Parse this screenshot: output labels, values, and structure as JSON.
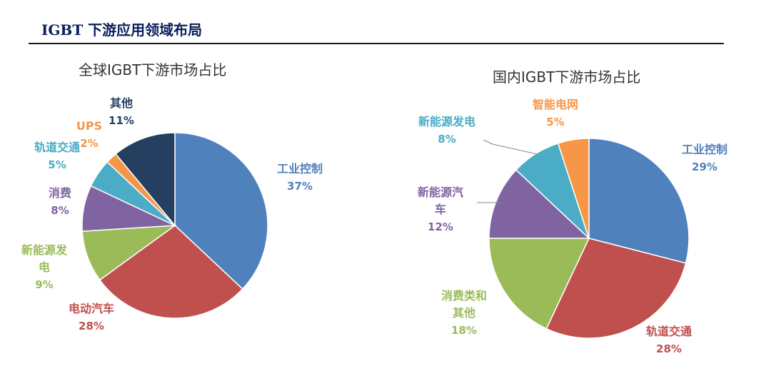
{
  "header": {
    "title": "IGBT 下游应用领域布局"
  },
  "chart_data": [
    {
      "type": "pie",
      "title": "全球IGBT下游市场占比",
      "slices": [
        {
          "label": "工业控制",
          "value": 37,
          "pct_label": "37%",
          "color": "#4f81bd"
        },
        {
          "label": "电动汽车",
          "value": 28,
          "pct_label": "28%",
          "color": "#c0504d"
        },
        {
          "label": "新能源发电",
          "value": 9,
          "pct_label": "9%",
          "color": "#9bbb59"
        },
        {
          "label": "消费",
          "value": 8,
          "pct_label": "8%",
          "color": "#8064a2"
        },
        {
          "label": "轨道交通",
          "value": 5,
          "pct_label": "5%",
          "color": "#4bacc6"
        },
        {
          "label": "UPS",
          "value": 2,
          "pct_label": "2%",
          "color": "#f79646"
        },
        {
          "label": "其他",
          "value": 11,
          "pct_label": "11%",
          "color": "#243f60"
        }
      ]
    },
    {
      "type": "pie",
      "title": "国内IGBT下游市场占比",
      "slices": [
        {
          "label": "工业控制",
          "value": 29,
          "pct_label": "29%",
          "color": "#4f81bd"
        },
        {
          "label": "轨道交通",
          "value": 28,
          "pct_label": "28%",
          "color": "#c0504d"
        },
        {
          "label": "消费类和其他",
          "value": 18,
          "pct_label": "18%",
          "color": "#9bbb59"
        },
        {
          "label": "新能源汽车",
          "value": 12,
          "pct_label": "12%",
          "color": "#8064a2"
        },
        {
          "label": "新能源发电",
          "value": 8,
          "pct_label": "8%",
          "color": "#4bacc6"
        },
        {
          "label": "智能电网",
          "value": 5,
          "pct_label": "5%",
          "color": "#f79646"
        }
      ]
    }
  ]
}
